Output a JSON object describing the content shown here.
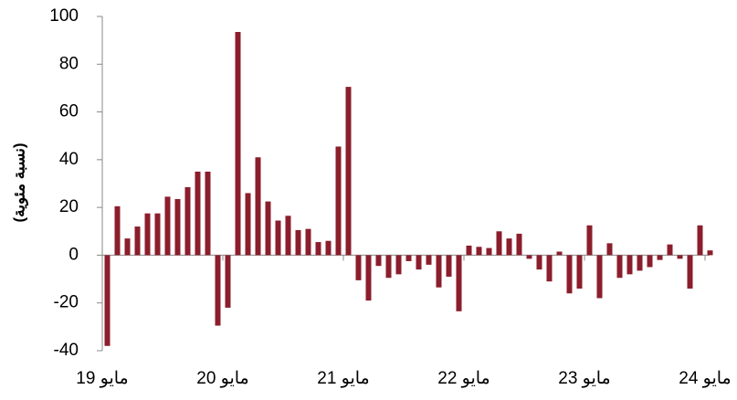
{
  "chart_data": {
    "type": "bar",
    "y_label": "(نسبة مئوية)",
    "categories": [
      "مايو 19",
      null,
      null,
      null,
      null,
      null,
      null,
      null,
      null,
      null,
      null,
      null,
      "مايو 20",
      null,
      null,
      null,
      null,
      null,
      null,
      null,
      null,
      null,
      null,
      null,
      "مايو 21",
      null,
      null,
      null,
      null,
      null,
      null,
      null,
      null,
      null,
      null,
      null,
      "مايو 22",
      null,
      null,
      null,
      null,
      null,
      null,
      null,
      null,
      null,
      null,
      null,
      "مايو 23",
      null,
      null,
      null,
      null,
      null,
      null,
      null,
      null,
      null,
      null,
      null,
      "مايو 24"
    ],
    "values": [
      -38,
      20.5,
      7,
      12,
      17.5,
      17.5,
      24.5,
      23.5,
      28.5,
      35,
      35,
      -29.5,
      -22,
      93.5,
      26,
      41,
      22.5,
      14.5,
      16.5,
      10.5,
      11,
      5.5,
      6,
      45.5,
      70.5,
      -10.5,
      -19,
      -4.5,
      -9.5,
      -8,
      -2.5,
      -6,
      -4,
      -13.5,
      -9,
      -23.5,
      4,
      3.5,
      3,
      10,
      7,
      9,
      -1.5,
      -6,
      -11,
      1.5,
      -16,
      -14,
      12.5,
      -18,
      5,
      -9.5,
      -8,
      -6.5,
      -5,
      -2,
      4.5,
      -1.5,
      -14,
      12.5,
      2
    ],
    "color": "#8b1e2c",
    "ylim": [
      -40,
      100
    ],
    "yticks": [
      -40,
      -20,
      0,
      20,
      40,
      60,
      80,
      100
    ],
    "grid": false
  }
}
